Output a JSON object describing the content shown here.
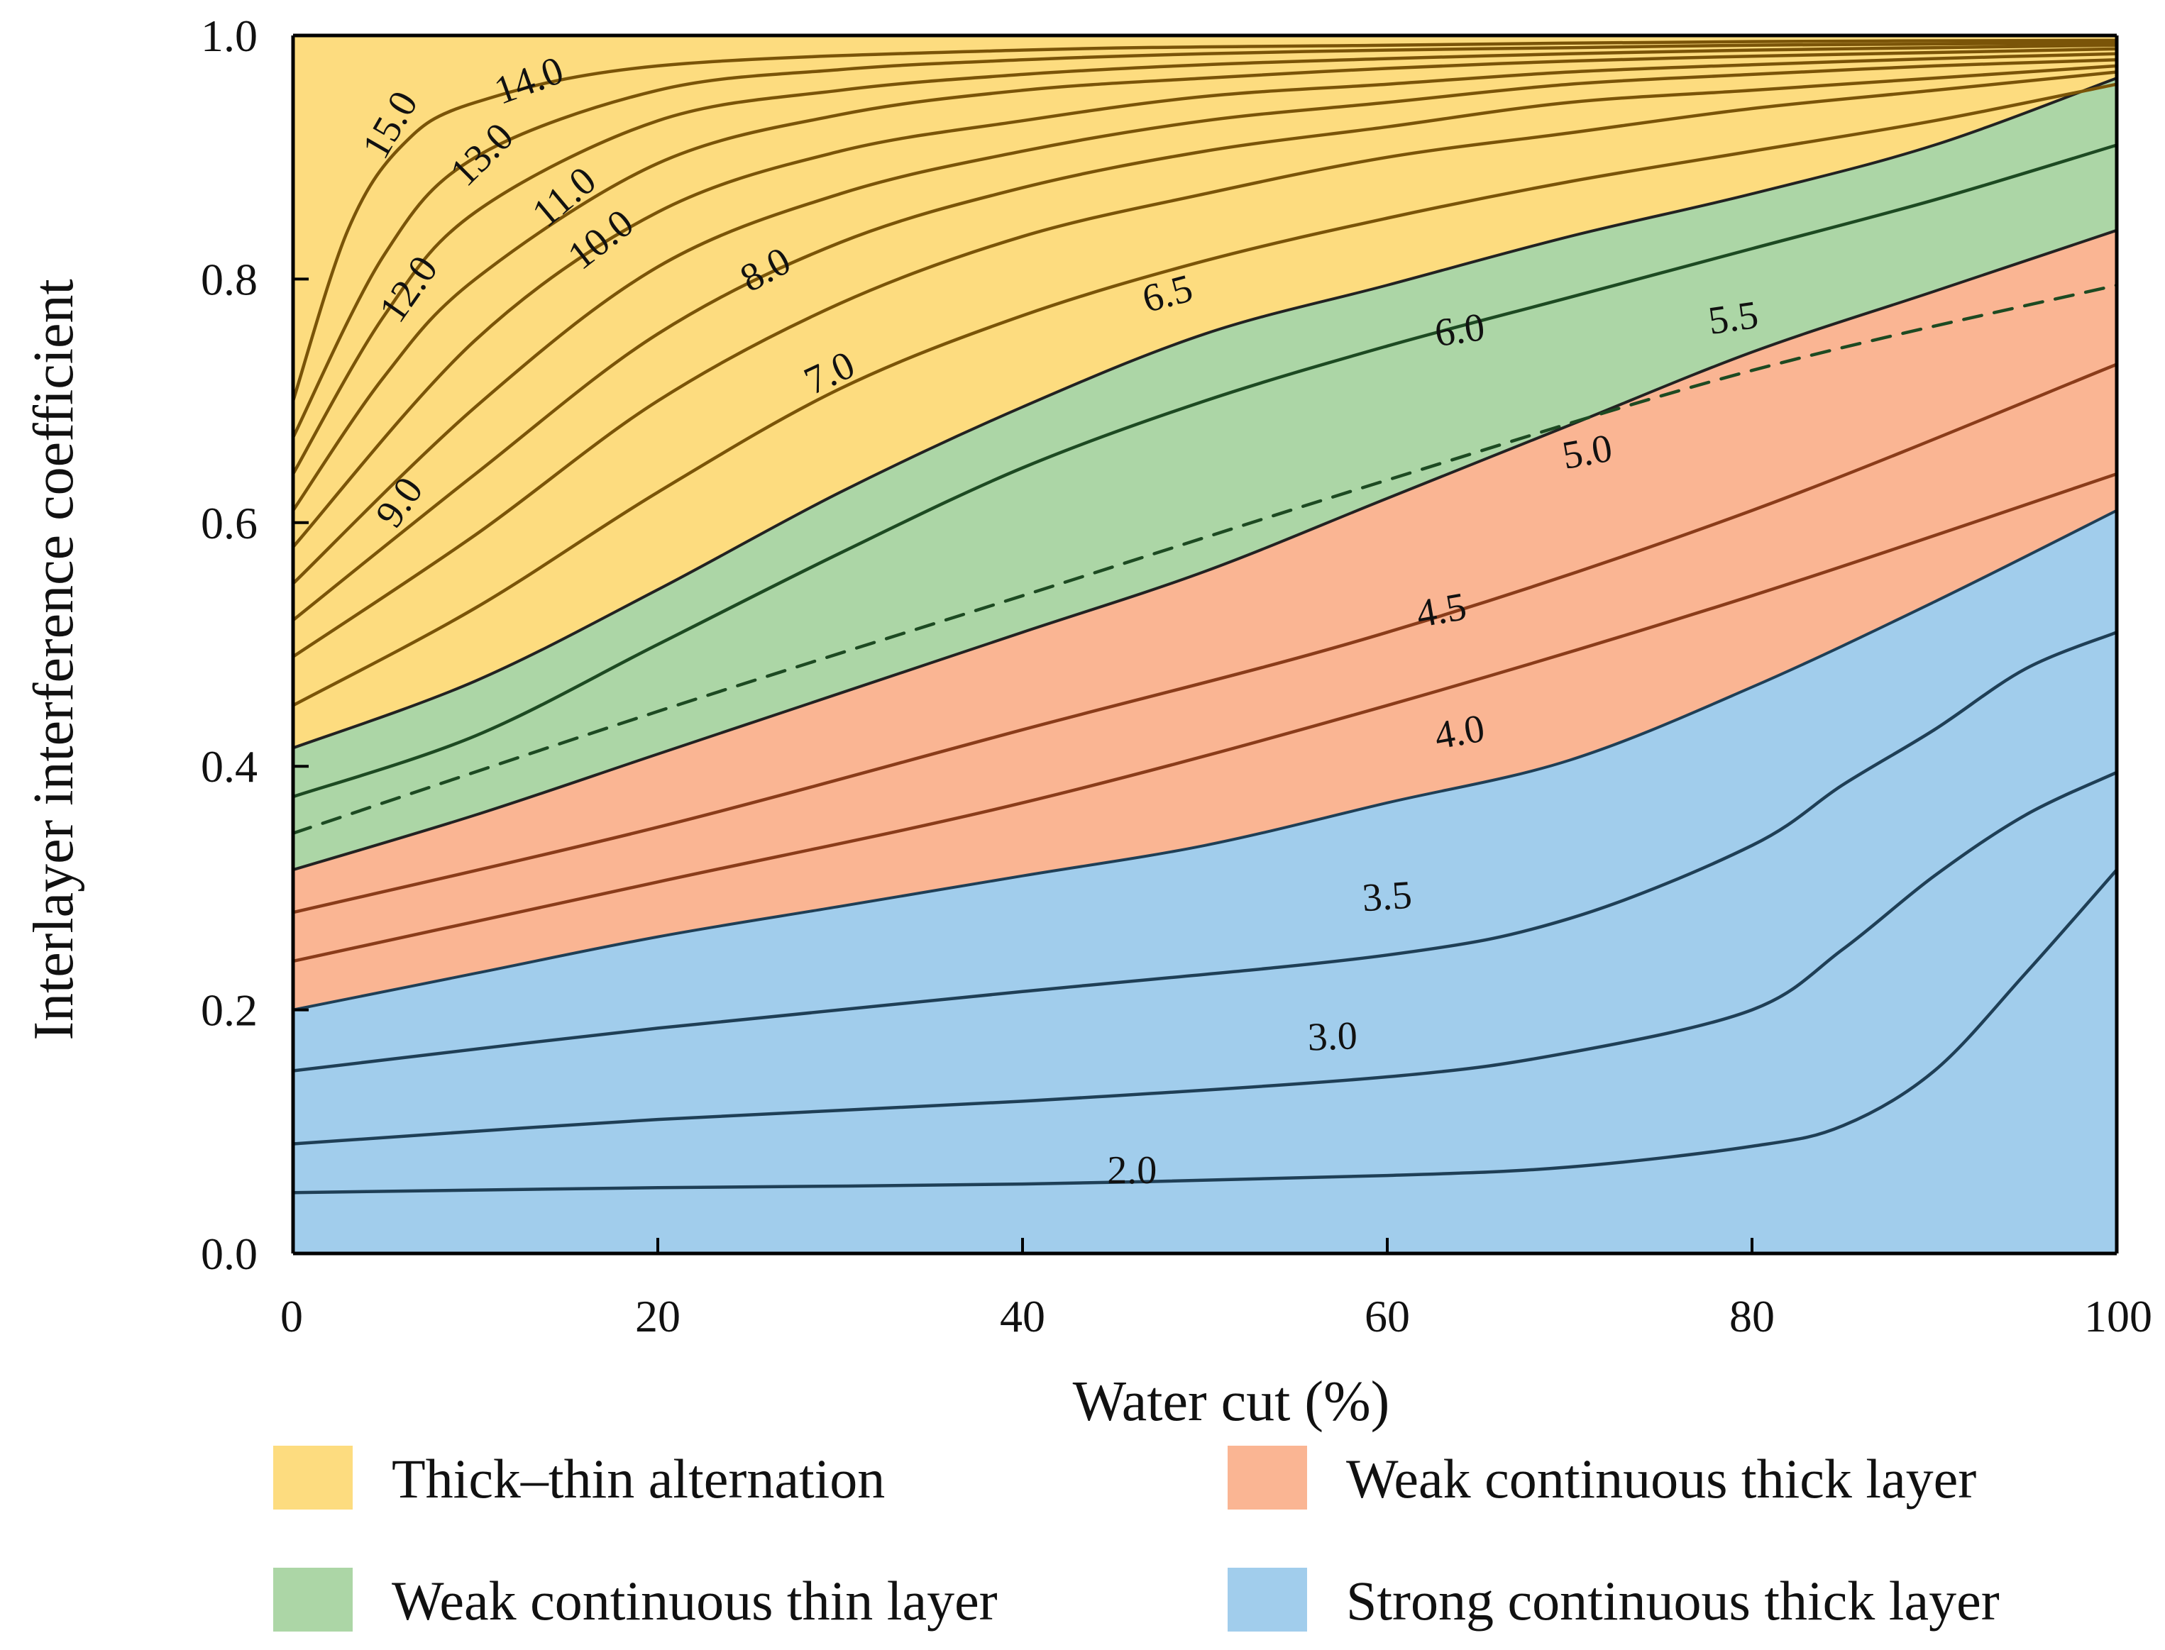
{
  "chart_data": {
    "type": "area",
    "xlabel": "Water cut (%)",
    "ylabel": "Interlayer interference coefficient",
    "xlim": [
      0,
      100
    ],
    "ylim": [
      0.0,
      1.0
    ],
    "x_ticks": [
      {
        "value": 0,
        "label": "0"
      },
      {
        "value": 20,
        "label": "20"
      },
      {
        "value": 40,
        "label": "40"
      },
      {
        "value": 60,
        "label": "60"
      },
      {
        "value": 80,
        "label": "80"
      },
      {
        "value": 100,
        "label": "100"
      }
    ],
    "y_ticks": [
      {
        "value": 0.0,
        "label": "0.0"
      },
      {
        "value": 0.2,
        "label": "0.2"
      },
      {
        "value": 0.4,
        "label": "0.4"
      },
      {
        "value": 0.6,
        "label": "0.6"
      },
      {
        "value": 0.8,
        "label": "0.8"
      },
      {
        "value": 1.0,
        "label": "1.0"
      }
    ],
    "regions": [
      {
        "name": "Thick–thin alternation",
        "color": "#fddc7f",
        "lower": [
          [
            0,
            0.415
          ],
          [
            10,
            0.47
          ],
          [
            20,
            0.545
          ],
          [
            30,
            0.625
          ],
          [
            40,
            0.695
          ],
          [
            50,
            0.755
          ],
          [
            60,
            0.795
          ],
          [
            70,
            0.835
          ],
          [
            80,
            0.87
          ],
          [
            90,
            0.91
          ],
          [
            100,
            0.965
          ]
        ],
        "upper": [
          [
            0,
            1.0
          ],
          [
            100,
            1.0
          ]
        ]
      },
      {
        "name": "Weak continuous thin layer",
        "color": "#acd6a6",
        "lower": [
          [
            0,
            0.315
          ],
          [
            10,
            0.36
          ],
          [
            20,
            0.41
          ],
          [
            30,
            0.46
          ],
          [
            40,
            0.51
          ],
          [
            50,
            0.56
          ],
          [
            60,
            0.62
          ],
          [
            70,
            0.68
          ],
          [
            80,
            0.74
          ],
          [
            90,
            0.79
          ],
          [
            100,
            0.84
          ]
        ],
        "upper": "Thick–thin alternation.lower"
      },
      {
        "name": "Weak continuous thick layer",
        "color": "#fab593",
        "lower": [
          [
            0,
            0.2
          ],
          [
            10,
            0.23
          ],
          [
            20,
            0.26
          ],
          [
            30,
            0.285
          ],
          [
            40,
            0.31
          ],
          [
            50,
            0.335
          ],
          [
            60,
            0.37
          ],
          [
            70,
            0.405
          ],
          [
            80,
            0.465
          ],
          [
            90,
            0.535
          ],
          [
            100,
            0.61
          ]
        ],
        "upper": "Weak continuous thin layer.lower"
      },
      {
        "name": "Strong continuous thick layer",
        "color": "#a1cdec",
        "lower": [
          [
            0,
            0.0
          ],
          [
            100,
            0.0
          ]
        ],
        "upper": "Weak continuous thick layer.lower"
      }
    ],
    "contours": [
      {
        "label": "2.0",
        "color": "#1f3f56",
        "points": [
          [
            0,
            0.05
          ],
          [
            20,
            0.054
          ],
          [
            40,
            0.057
          ],
          [
            60,
            0.064
          ],
          [
            70,
            0.071
          ],
          [
            80,
            0.088
          ],
          [
            85,
            0.105
          ],
          [
            90,
            0.15
          ],
          [
            95,
            0.23
          ],
          [
            100,
            0.315
          ]
        ]
      },
      {
        "label": "3.0",
        "color": "#1f3f56",
        "points": [
          [
            0,
            0.09
          ],
          [
            20,
            0.11
          ],
          [
            40,
            0.125
          ],
          [
            60,
            0.145
          ],
          [
            70,
            0.165
          ],
          [
            80,
            0.2
          ],
          [
            85,
            0.25
          ],
          [
            90,
            0.31
          ],
          [
            95,
            0.36
          ],
          [
            100,
            0.395
          ]
        ]
      },
      {
        "label": "3.5",
        "color": "#1f3f56",
        "points": [
          [
            0,
            0.15
          ],
          [
            20,
            0.185
          ],
          [
            40,
            0.215
          ],
          [
            60,
            0.245
          ],
          [
            70,
            0.275
          ],
          [
            80,
            0.335
          ],
          [
            85,
            0.385
          ],
          [
            90,
            0.43
          ],
          [
            95,
            0.48
          ],
          [
            100,
            0.51
          ]
        ]
      },
      {
        "label": "4.5",
        "color": "#8a3c1a",
        "points": [
          [
            0,
            0.24
          ],
          [
            20,
            0.305
          ],
          [
            40,
            0.37
          ],
          [
            60,
            0.45
          ],
          [
            80,
            0.54
          ],
          [
            100,
            0.64
          ]
        ]
      },
      {
        "label": "5.0",
        "color": "#8a3c1a",
        "points": [
          [
            0,
            0.28
          ],
          [
            20,
            0.35
          ],
          [
            40,
            0.43
          ],
          [
            60,
            0.51
          ],
          [
            80,
            0.61
          ],
          [
            100,
            0.73
          ]
        ]
      },
      {
        "label": "6.0",
        "color": "#1d4a22",
        "points": [
          [
            0,
            0.375
          ],
          [
            10,
            0.425
          ],
          [
            20,
            0.5
          ],
          [
            30,
            0.575
          ],
          [
            40,
            0.645
          ],
          [
            50,
            0.7
          ],
          [
            60,
            0.745
          ],
          [
            70,
            0.785
          ],
          [
            80,
            0.825
          ],
          [
            90,
            0.865
          ],
          [
            100,
            0.91
          ]
        ]
      },
      {
        "label": "5.5",
        "color": "#1d4a22",
        "dashed": true,
        "points": [
          [
            0,
            0.345
          ],
          [
            20,
            0.445
          ],
          [
            40,
            0.54
          ],
          [
            60,
            0.635
          ],
          [
            80,
            0.725
          ],
          [
            100,
            0.795
          ]
        ]
      },
      {
        "label": "7.0",
        "color": "#7a5408",
        "points": [
          [
            0,
            0.45
          ],
          [
            10,
            0.53
          ],
          [
            20,
            0.625
          ],
          [
            30,
            0.71
          ],
          [
            40,
            0.77
          ],
          [
            50,
            0.815
          ],
          [
            60,
            0.85
          ],
          [
            70,
            0.88
          ],
          [
            80,
            0.905
          ],
          [
            90,
            0.93
          ],
          [
            100,
            0.96
          ]
        ]
      },
      {
        "label": "8.0",
        "color": "#7a5408",
        "points": [
          [
            0,
            0.49
          ],
          [
            10,
            0.59
          ],
          [
            20,
            0.7
          ],
          [
            30,
            0.78
          ],
          [
            40,
            0.835
          ],
          [
            50,
            0.87
          ],
          [
            60,
            0.9
          ],
          [
            70,
            0.92
          ],
          [
            80,
            0.94
          ],
          [
            90,
            0.955
          ],
          [
            100,
            0.97
          ]
        ]
      },
      {
        "label": "9.0",
        "color": "#7a5408",
        "points": [
          [
            0,
            0.52
          ],
          [
            10,
            0.64
          ],
          [
            20,
            0.755
          ],
          [
            30,
            0.83
          ],
          [
            40,
            0.875
          ],
          [
            50,
            0.905
          ],
          [
            60,
            0.925
          ],
          [
            70,
            0.945
          ],
          [
            80,
            0.955
          ],
          [
            90,
            0.965
          ],
          [
            100,
            0.975
          ]
        ]
      },
      {
        "label": "10.0",
        "color": "#7a5408",
        "points": [
          [
            0,
            0.55
          ],
          [
            10,
            0.695
          ],
          [
            20,
            0.81
          ],
          [
            30,
            0.87
          ],
          [
            40,
            0.905
          ],
          [
            50,
            0.93
          ],
          [
            60,
            0.945
          ],
          [
            70,
            0.96
          ],
          [
            80,
            0.968
          ],
          [
            90,
            0.975
          ],
          [
            100,
            0.98
          ]
        ]
      },
      {
        "label": "11.0",
        "color": "#7a5408",
        "points": [
          [
            0,
            0.58
          ],
          [
            10,
            0.75
          ],
          [
            20,
            0.855
          ],
          [
            30,
            0.905
          ],
          [
            40,
            0.93
          ],
          [
            50,
            0.95
          ],
          [
            60,
            0.96
          ],
          [
            70,
            0.97
          ],
          [
            80,
            0.976
          ],
          [
            90,
            0.981
          ],
          [
            100,
            0.985
          ]
        ]
      },
      {
        "label": "12.0",
        "color": "#7a5408",
        "points": [
          [
            0,
            0.61
          ],
          [
            5,
            0.72
          ],
          [
            10,
            0.8
          ],
          [
            20,
            0.895
          ],
          [
            30,
            0.935
          ],
          [
            40,
            0.955
          ],
          [
            50,
            0.965
          ],
          [
            60,
            0.973
          ],
          [
            70,
            0.979
          ],
          [
            80,
            0.983
          ],
          [
            90,
            0.986
          ],
          [
            100,
            0.989
          ]
        ]
      },
      {
        "label": "13.0",
        "color": "#7a5408",
        "points": [
          [
            0,
            0.64
          ],
          [
            5,
            0.77
          ],
          [
            10,
            0.855
          ],
          [
            20,
            0.93
          ],
          [
            30,
            0.955
          ],
          [
            40,
            0.968
          ],
          [
            50,
            0.976
          ],
          [
            60,
            0.981
          ],
          [
            70,
            0.985
          ],
          [
            80,
            0.988
          ],
          [
            90,
            0.99
          ],
          [
            100,
            0.992
          ]
        ]
      },
      {
        "label": "14.0",
        "color": "#7a5408",
        "points": [
          [
            0,
            0.67
          ],
          [
            5,
            0.82
          ],
          [
            10,
            0.9
          ],
          [
            20,
            0.955
          ],
          [
            30,
            0.972
          ],
          [
            40,
            0.98
          ],
          [
            50,
            0.985
          ],
          [
            60,
            0.988
          ],
          [
            70,
            0.99
          ],
          [
            80,
            0.992
          ],
          [
            90,
            0.993
          ],
          [
            100,
            0.994
          ]
        ]
      },
      {
        "label": "15.0",
        "color": "#7a5408",
        "points": [
          [
            0,
            0.7
          ],
          [
            3,
            0.84
          ],
          [
            6,
            0.91
          ],
          [
            10,
            0.945
          ],
          [
            20,
            0.975
          ],
          [
            40,
            0.988
          ],
          [
            60,
            0.992
          ],
          [
            80,
            0.995
          ],
          [
            100,
            0.996
          ]
        ]
      }
    ],
    "region_boundaries": [
      {
        "between": [
          "Strong continuous thick layer",
          "Weak continuous thick layer"
        ],
        "color": "#1f3f56"
      },
      {
        "between": [
          "Weak continuous thick layer",
          "Weak continuous thin layer"
        ],
        "color": "#222222"
      },
      {
        "between": [
          "Weak continuous thin layer",
          "Thick–thin alternation"
        ],
        "color": "#222222"
      }
    ],
    "contour_labels": [
      {
        "text": "2.0",
        "x": 46,
        "y": 0.065,
        "rotation": 0
      },
      {
        "text": "3.0",
        "x": 57,
        "y": 0.175,
        "rotation": -2
      },
      {
        "text": "3.5",
        "x": 60,
        "y": 0.29,
        "rotation": -4
      },
      {
        "text": "4.0",
        "x": 64,
        "y": 0.425,
        "rotation": -10
      },
      {
        "text": "4.5",
        "x": 63,
        "y": 0.525,
        "rotation": -10
      },
      {
        "text": "5.0",
        "x": 71,
        "y": 0.655,
        "rotation": -10
      },
      {
        "text": "5.5",
        "x": 79,
        "y": 0.765,
        "rotation": -8
      },
      {
        "text": "6.0",
        "x": 64,
        "y": 0.755,
        "rotation": -8
      },
      {
        "text": "6.5",
        "x": 48,
        "y": 0.785,
        "rotation": -15
      },
      {
        "text": "7.0",
        "x": 29.5,
        "y": 0.72,
        "rotation": -25
      },
      {
        "text": "8.0",
        "x": 26,
        "y": 0.805,
        "rotation": -28
      },
      {
        "text": "9.0",
        "x": 6,
        "y": 0.615,
        "rotation": -55
      },
      {
        "text": "10.0",
        "x": 17,
        "y": 0.83,
        "rotation": -38
      },
      {
        "text": "11.0",
        "x": 15,
        "y": 0.865,
        "rotation": -40
      },
      {
        "text": "12.0",
        "x": 6.5,
        "y": 0.79,
        "rotation": -55
      },
      {
        "text": "13.0",
        "x": 10.5,
        "y": 0.9,
        "rotation": -45
      },
      {
        "text": "14.0",
        "x": 13,
        "y": 0.96,
        "rotation": -20
      },
      {
        "text": "15.0",
        "x": 5.5,
        "y": 0.925,
        "rotation": -60
      }
    ],
    "legend": {
      "position": "bottom",
      "items": [
        {
          "label": "Thick–thin alternation",
          "color": "#fddc7f"
        },
        {
          "label": "Weak continuous thick layer",
          "color": "#fab593"
        },
        {
          "label": "Weak continuous thin layer",
          "color": "#acd6a6"
        },
        {
          "label": "Strong continuous thick layer",
          "color": "#a1cdec"
        }
      ]
    },
    "grid": false
  }
}
